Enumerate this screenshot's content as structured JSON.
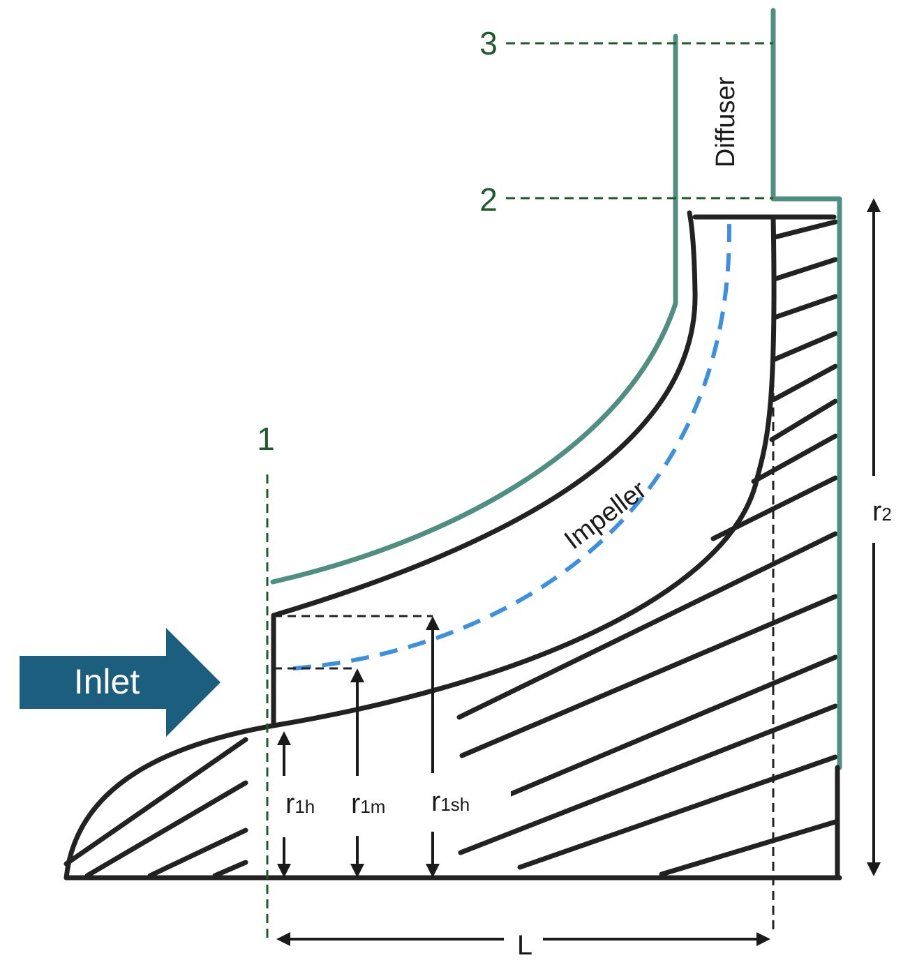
{
  "labels": {
    "station_1": "1",
    "station_2": "2",
    "station_3": "3",
    "diffuser": "Diffuser",
    "impeller": "Impeller",
    "inlet": "Inlet",
    "r1h_main": "r",
    "r1h_sub": "1h",
    "r1m_main": "r",
    "r1m_sub": "1m",
    "r1sh_main": "r",
    "r1sh_sub": "1sh",
    "r2_main": "r",
    "r2_sub": "2",
    "length": "L"
  },
  "colors": {
    "outline": "#222222",
    "casing": "#4f8f82",
    "station_lines": "#1e5a2a",
    "meanline": "#3d8fe0",
    "inlet_arrow": "#1b5e7e"
  }
}
